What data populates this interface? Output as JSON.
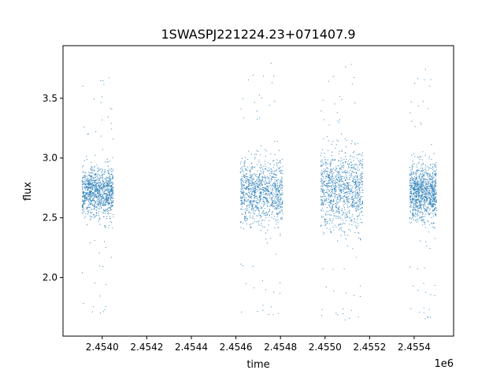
{
  "chart_data": {
    "type": "scatter",
    "title": "1SWASPJ221224.23+071407.9",
    "xlabel": "time",
    "ylabel": "flux",
    "x_offset_label": "1e6",
    "xlim": [
      2453824,
      2455577
    ],
    "ylim": [
      1.51,
      3.94
    ],
    "x_ticks": [
      2454000,
      2454200,
      2454400,
      2454600,
      2454800,
      2455000,
      2455200,
      2455400
    ],
    "x_tick_labels": [
      "2.4540",
      "2.4542",
      "2.4544",
      "2.4546",
      "2.4548",
      "2.4550",
      "2.4552",
      "2.4554"
    ],
    "y_ticks": [
      2.0,
      2.5,
      3.0,
      3.5
    ],
    "y_tick_labels": [
      "2.0",
      "2.5",
      "3.0",
      "3.5"
    ],
    "grid": false,
    "marker_color": "#1f77b4",
    "observing_seasons": [
      {
        "time_range": [
          2453910,
          2454050
        ],
        "flux_median": 2.72,
        "flux_core": [
          2.45,
          3.0
        ],
        "flux_extent": [
          1.68,
          3.7
        ]
      },
      {
        "time_range": [
          2454620,
          2454810
        ],
        "flux_median": 2.72,
        "flux_core": [
          2.35,
          3.1
        ],
        "flux_extent": [
          1.65,
          3.83
        ]
      },
      {
        "time_range": [
          2454980,
          2455170
        ],
        "flux_median": 2.74,
        "flux_core": [
          2.3,
          3.2
        ],
        "flux_extent": [
          1.62,
          3.82
        ]
      },
      {
        "time_range": [
          2455380,
          2455500
        ],
        "flux_median": 2.72,
        "flux_core": [
          2.4,
          3.05
        ],
        "flux_extent": [
          1.63,
          3.8
        ]
      }
    ]
  }
}
